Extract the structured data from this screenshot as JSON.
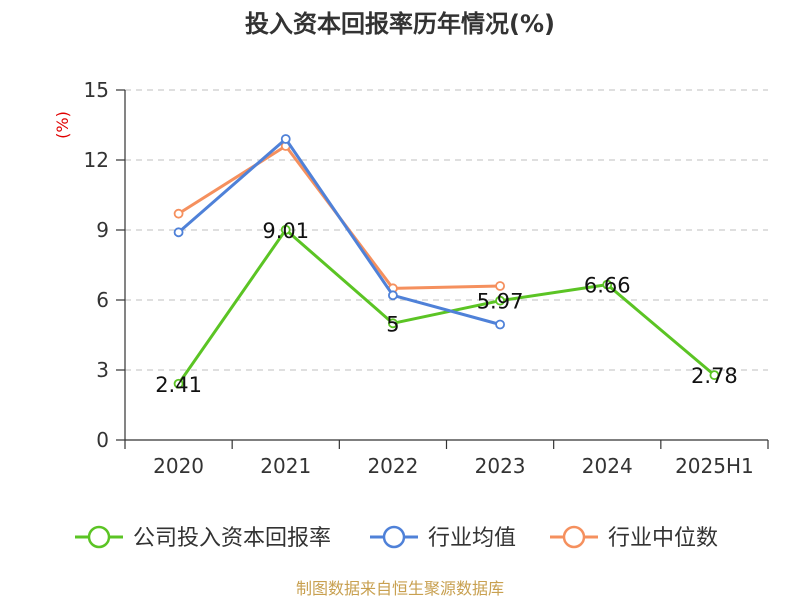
{
  "chart_data": {
    "type": "line",
    "title": "投入资本回报率历年情况(%)",
    "ylabel": "(%)",
    "categories": [
      "2020",
      "2021",
      "2022",
      "2023",
      "2024",
      "2025H1"
    ],
    "ylim": [
      0,
      15
    ],
    "yticks": [
      0,
      3,
      6,
      9,
      12,
      15
    ],
    "grid": true,
    "legend_position": "bottom",
    "series": [
      {
        "name": "公司投入资本回报率",
        "color": "#5bc424",
        "values": [
          2.41,
          9.01,
          5,
          5.97,
          6.66,
          2.78
        ],
        "labels": [
          "2.41",
          "9.01",
          "5",
          "5.97",
          "6.66",
          "2.78"
        ]
      },
      {
        "name": "行业均值",
        "color": "#4f81d8",
        "values": [
          8.9,
          12.9,
          6.2,
          4.95,
          null,
          null
        ]
      },
      {
        "name": "行业中位数",
        "color": "#f5905e",
        "values": [
          9.7,
          12.6,
          6.5,
          6.6,
          null,
          null
        ]
      }
    ],
    "source": "制图数据来自恒生聚源数据库"
  }
}
